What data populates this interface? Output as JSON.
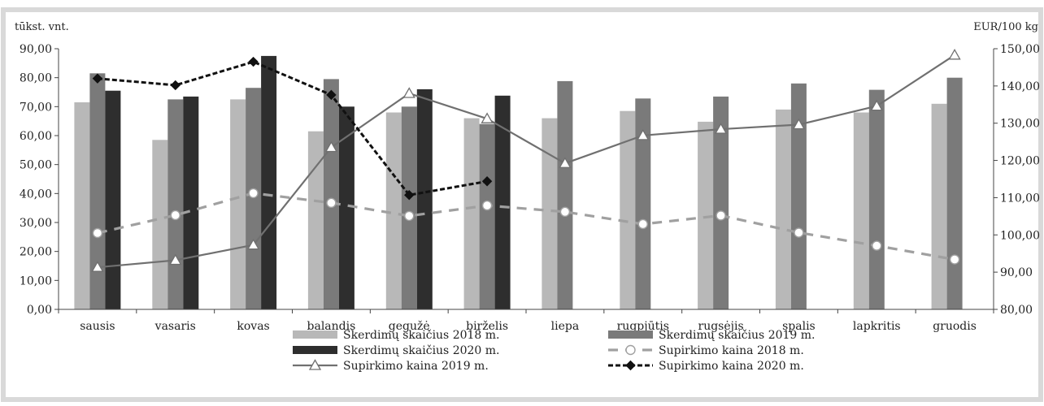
{
  "chart_data": {
    "type": "bar",
    "categories": [
      "sausis",
      "vasaris",
      "kovas",
      "balandis",
      "gegužė",
      "birželis",
      "liepa",
      "rugpjūtis",
      "rugsėjis",
      "spalis",
      "lapkritis",
      "gruodis"
    ],
    "left_axis": {
      "unit": "tūkst. vnt.",
      "ylim": [
        0,
        90
      ],
      "ticks": [
        0,
        10,
        20,
        30,
        40,
        50,
        60,
        70,
        80,
        90
      ],
      "tick_labels": [
        "0,00",
        "10,00",
        "20,00",
        "30,00",
        "40,00",
        "50,00",
        "60,00",
        "70,00",
        "80,00",
        "90,00"
      ]
    },
    "right_axis": {
      "unit": "EUR/100 kg",
      "ylim": [
        80,
        150
      ],
      "ticks": [
        80,
        90,
        100,
        110,
        120,
        130,
        140,
        150
      ],
      "tick_labels": [
        "80,00",
        "90,00",
        "100,00",
        "110,00",
        "120,00",
        "130,00",
        "140,00",
        "150,00"
      ]
    },
    "bar_series": [
      {
        "name": "Skerdimų skaičius 2018 m.",
        "color": "#b8b8b8",
        "values": [
          71.5,
          58.5,
          72.5,
          61.5,
          68.0,
          66.0,
          66.0,
          68.5,
          64.8,
          69.0,
          68.0,
          71.0
        ]
      },
      {
        "name": "Skerdimų skaičius 2019 m.",
        "color": "#7a7a7a",
        "values": [
          81.5,
          72.5,
          76.5,
          79.5,
          70.0,
          64.0,
          78.8,
          72.8,
          73.5,
          78.0,
          75.8,
          80.0
        ]
      },
      {
        "name": "Skerdimų skaičius 2020 m.",
        "color": "#2e2e2e",
        "values": [
          75.5,
          73.5,
          87.5,
          70.0,
          76.0,
          73.8,
          null,
          null,
          null,
          null,
          null,
          null
        ]
      }
    ],
    "line_series": [
      {
        "name": "Supirkimo kaina 2018 m.",
        "color": "#a0a0a0",
        "style": "dashed",
        "marker": "circle",
        "values": [
          100.5,
          105.3,
          111.2,
          108.6,
          105.1,
          107.9,
          106.2,
          102.9,
          105.2,
          100.6,
          97.1,
          93.4
        ]
      },
      {
        "name": "Supirkimo kaina 2019 m.",
        "color": "#707070",
        "style": "solid",
        "marker": "triangle",
        "values": [
          91.3,
          93.2,
          97.3,
          123.5,
          138.0,
          131.2,
          119.2,
          126.7,
          128.4,
          129.6,
          134.6,
          148.3
        ]
      },
      {
        "name": "Supirkimo kaina 2020 m.",
        "color": "#111111",
        "style": "dotted",
        "marker": "diamond",
        "values": [
          142.0,
          140.2,
          146.5,
          137.6,
          110.7,
          114.4,
          null,
          null,
          null,
          null,
          null,
          null
        ]
      }
    ],
    "legend": [
      {
        "name": "Skerdimų skaičius 2018 m.",
        "kind": "bar",
        "series": 0
      },
      {
        "name": "Skerdimų skaičius 2019 m.",
        "kind": "bar",
        "series": 1
      },
      {
        "name": "Skerdimų skaičius 2020 m.",
        "kind": "bar",
        "series": 2
      },
      {
        "name": "Supirkimo kaina 2018 m.",
        "kind": "line",
        "series": 0
      },
      {
        "name": "Supirkimo kaina 2019 m.",
        "kind": "line",
        "series": 1
      },
      {
        "name": "Supirkimo kaina 2020 m.",
        "kind": "line",
        "series": 2
      }
    ],
    "legend_position": "bottom",
    "grid": false
  }
}
